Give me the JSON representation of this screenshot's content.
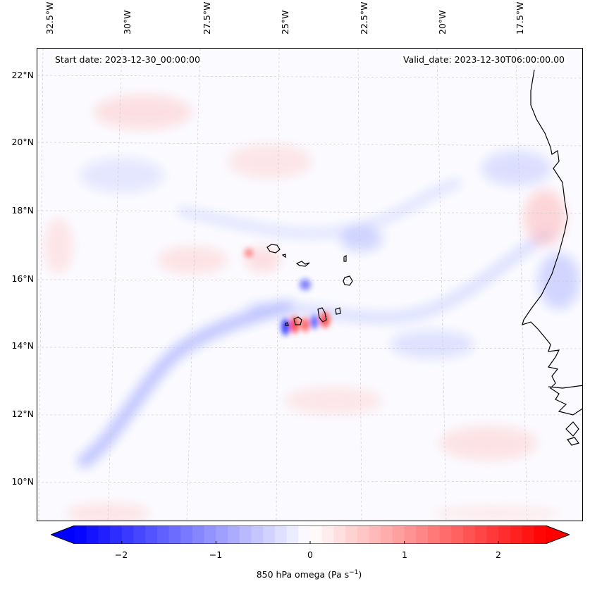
{
  "map": {
    "start_label": "Start date: 2023-12-30_00:00:00",
    "valid_label": "Valid_date: 2023-12-30T06:00:00.00",
    "lon_labels": [
      "32.5°W",
      "30°W",
      "27.5°W",
      "25°W",
      "22.5°W",
      "20°W",
      "17.5°W"
    ],
    "lat_labels": [
      "22°N",
      "20°N",
      "18°N",
      "16°N",
      "14°N",
      "12°N",
      "10°N"
    ],
    "coastline_color": "#000000",
    "gridline_color": "#bbbbbb",
    "features": [
      "Cabo Verde islands",
      "West African coastline"
    ]
  },
  "colorbar": {
    "label": "850 hPa omega (Pa s",
    "label_exp": "−1",
    "label_end": ")",
    "tick_labels": [
      "−2",
      "−1",
      "0",
      "1",
      "2"
    ],
    "tick_values": [
      -2,
      -1,
      0,
      1,
      2
    ],
    "vmin": -2.5,
    "vmax": 2.5,
    "min_color": "#0000ff",
    "mid_color": "#ffffff",
    "max_color": "#ff0000",
    "extend": "both"
  }
}
